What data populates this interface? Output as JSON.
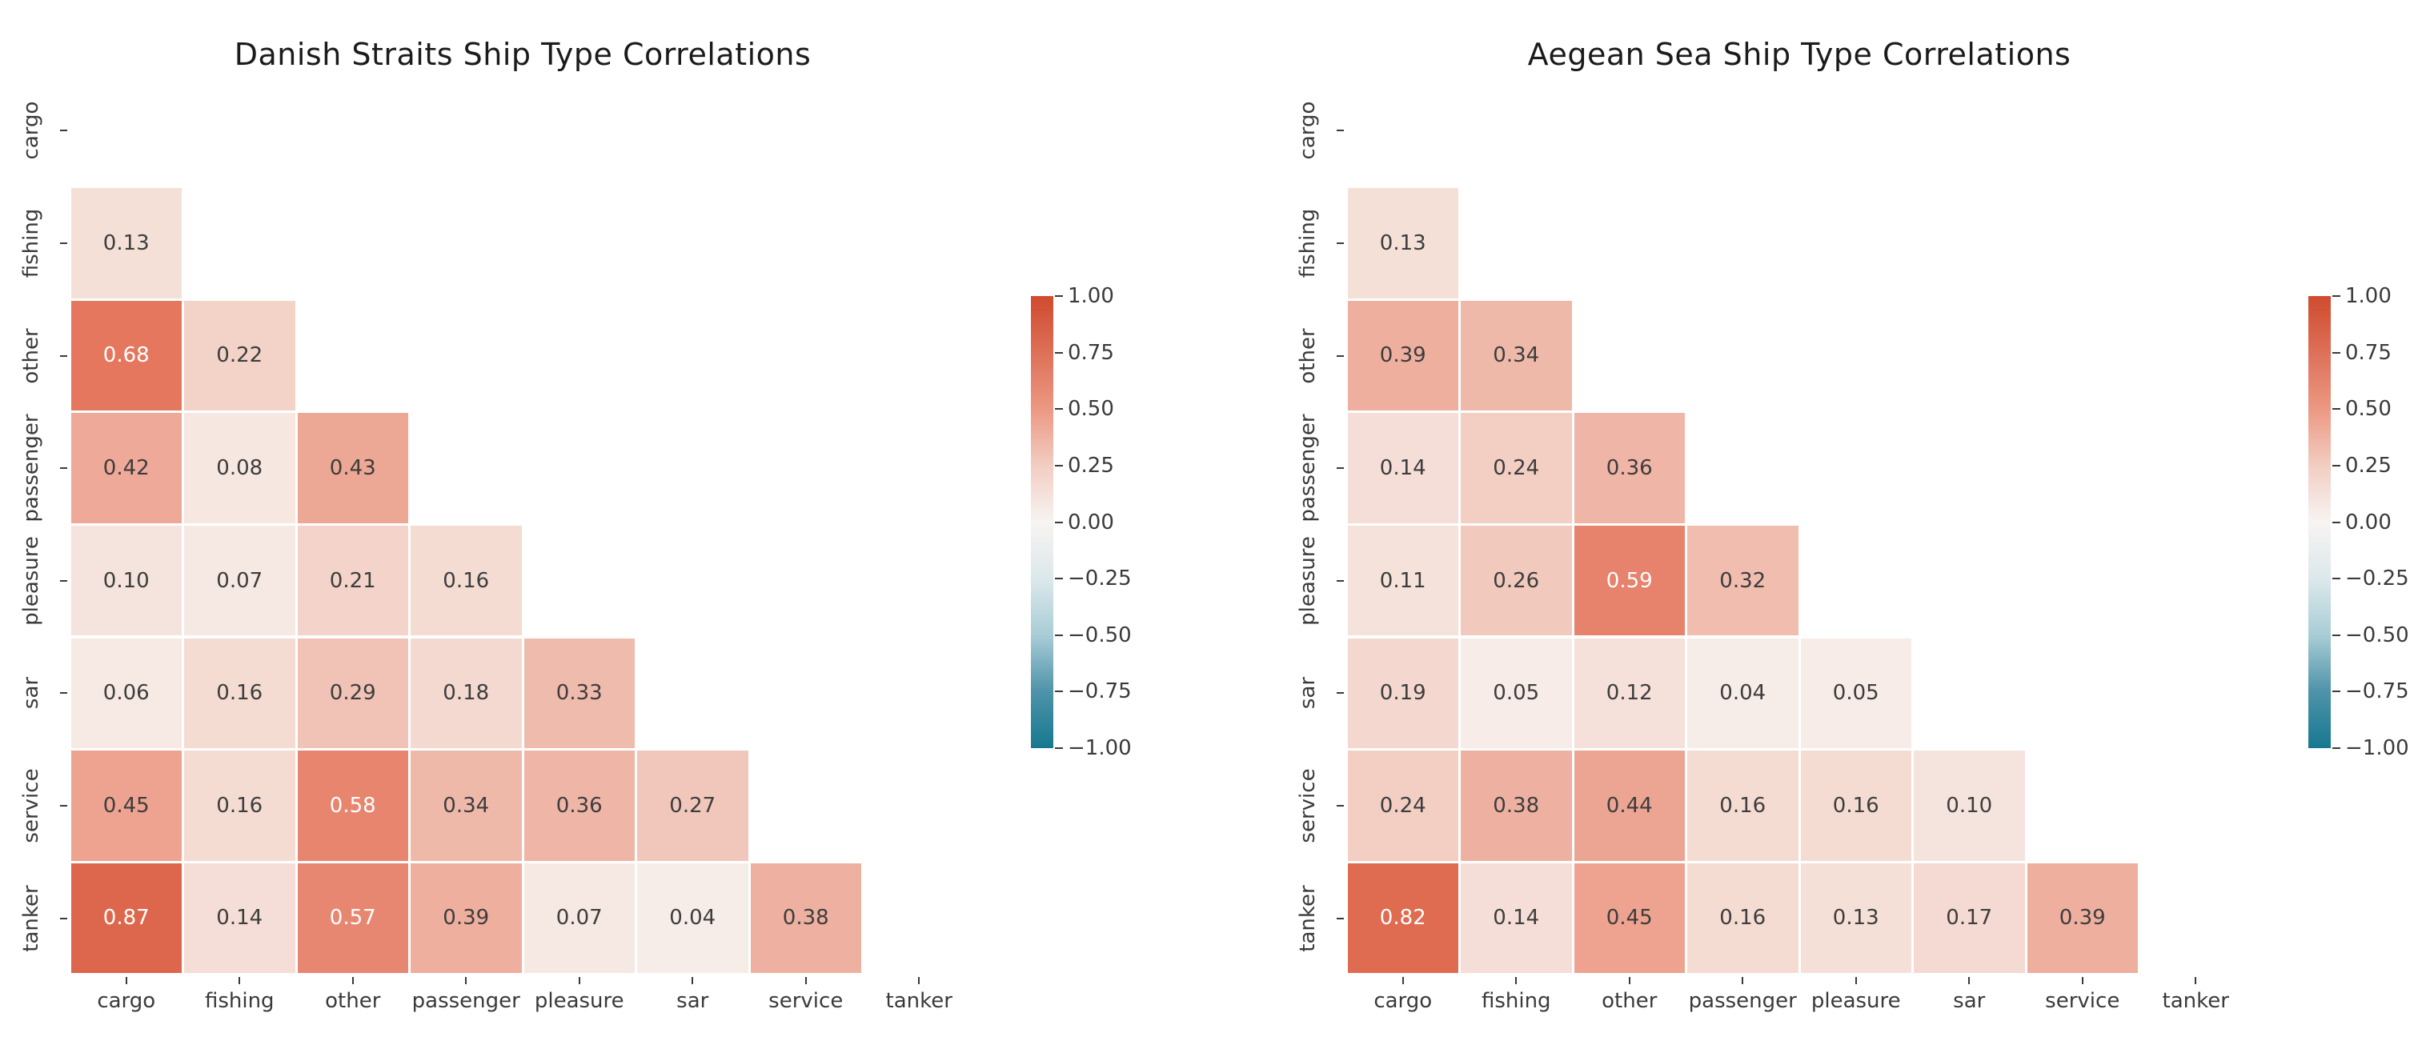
{
  "page": {
    "background": "#ffffff"
  },
  "chart_data": [
    {
      "type": "heatmap",
      "title": "Danish Straits Ship Type Correlations",
      "categories": [
        "cargo",
        "fishing",
        "other",
        "passenger",
        "pleasure",
        "sar",
        "service",
        "tanker"
      ],
      "mask": "upper-triangle-including-diagonal",
      "vmin": -1.0,
      "vmax": 1.0,
      "grid": false,
      "annotations": true,
      "legend_position": "right",
      "matrix": [
        [
          null,
          null,
          null,
          null,
          null,
          null,
          null,
          null
        ],
        [
          0.13,
          null,
          null,
          null,
          null,
          null,
          null,
          null
        ],
        [
          0.68,
          0.22,
          null,
          null,
          null,
          null,
          null,
          null
        ],
        [
          0.42,
          0.08,
          0.43,
          null,
          null,
          null,
          null,
          null
        ],
        [
          0.1,
          0.07,
          0.21,
          0.16,
          null,
          null,
          null,
          null
        ],
        [
          0.06,
          0.16,
          0.29,
          0.18,
          0.33,
          null,
          null,
          null
        ],
        [
          0.45,
          0.16,
          0.58,
          0.34,
          0.36,
          0.27,
          null,
          null
        ],
        [
          0.87,
          0.14,
          0.57,
          0.39,
          0.07,
          0.04,
          0.38,
          null
        ]
      ],
      "colorbar_ticks": [
        "1.00",
        "0.75",
        "0.50",
        "0.25",
        "0.00",
        "−0.25",
        "−0.50",
        "−0.75",
        "−1.00"
      ]
    },
    {
      "type": "heatmap",
      "title": "Aegean Sea Ship Type Correlations",
      "categories": [
        "cargo",
        "fishing",
        "other",
        "passenger",
        "pleasure",
        "sar",
        "service",
        "tanker"
      ],
      "mask": "upper-triangle-including-diagonal",
      "vmin": -1.0,
      "vmax": 1.0,
      "grid": false,
      "annotations": true,
      "legend_position": "right",
      "matrix": [
        [
          null,
          null,
          null,
          null,
          null,
          null,
          null,
          null
        ],
        [
          0.13,
          null,
          null,
          null,
          null,
          null,
          null,
          null
        ],
        [
          0.39,
          0.34,
          null,
          null,
          null,
          null,
          null,
          null
        ],
        [
          0.14,
          0.24,
          0.36,
          null,
          null,
          null,
          null,
          null
        ],
        [
          0.11,
          0.26,
          0.59,
          0.32,
          null,
          null,
          null,
          null
        ],
        [
          0.19,
          0.05,
          0.12,
          0.04,
          0.05,
          null,
          null,
          null
        ],
        [
          0.24,
          0.38,
          0.44,
          0.16,
          0.16,
          0.1,
          null,
          null
        ],
        [
          0.82,
          0.14,
          0.45,
          0.16,
          0.13,
          0.17,
          0.39,
          null
        ]
      ],
      "colorbar_ticks": [
        "1.00",
        "0.75",
        "0.50",
        "0.25",
        "0.00",
        "−0.25",
        "−0.50",
        "−0.75",
        "−1.00"
      ]
    }
  ],
  "colors": {
    "positive_ramp": [
      [
        0.0,
        249,
        243,
        240
      ],
      [
        0.1,
        245,
        228,
        221
      ],
      [
        0.2,
        244,
        214,
        205
      ],
      [
        0.3,
        240,
        193,
        179
      ],
      [
        0.4,
        238,
        173,
        157
      ],
      [
        0.5,
        236,
        152,
        131
      ],
      [
        0.6,
        230,
        128,
        105
      ],
      [
        0.7,
        227,
        117,
        90
      ],
      [
        0.8,
        224,
        110,
        83
      ],
      [
        0.9,
        219,
        100,
        73
      ],
      [
        1.0,
        207,
        75,
        46
      ]
    ],
    "colorbar_gradient": [
      "#cf4b2e",
      "#dd7058",
      "#ec9883",
      "#f2cdc2",
      "#f7f4f2",
      "#dce8eb",
      "#a9cdd6",
      "#4e93a9",
      "#16788f"
    ],
    "annot_dark": "#3d3d3d",
    "annot_light": "#ffffff",
    "white_text_threshold": 0.5,
    "tick_text": "#3a3a3a",
    "title_text": "#1b1b1b"
  }
}
